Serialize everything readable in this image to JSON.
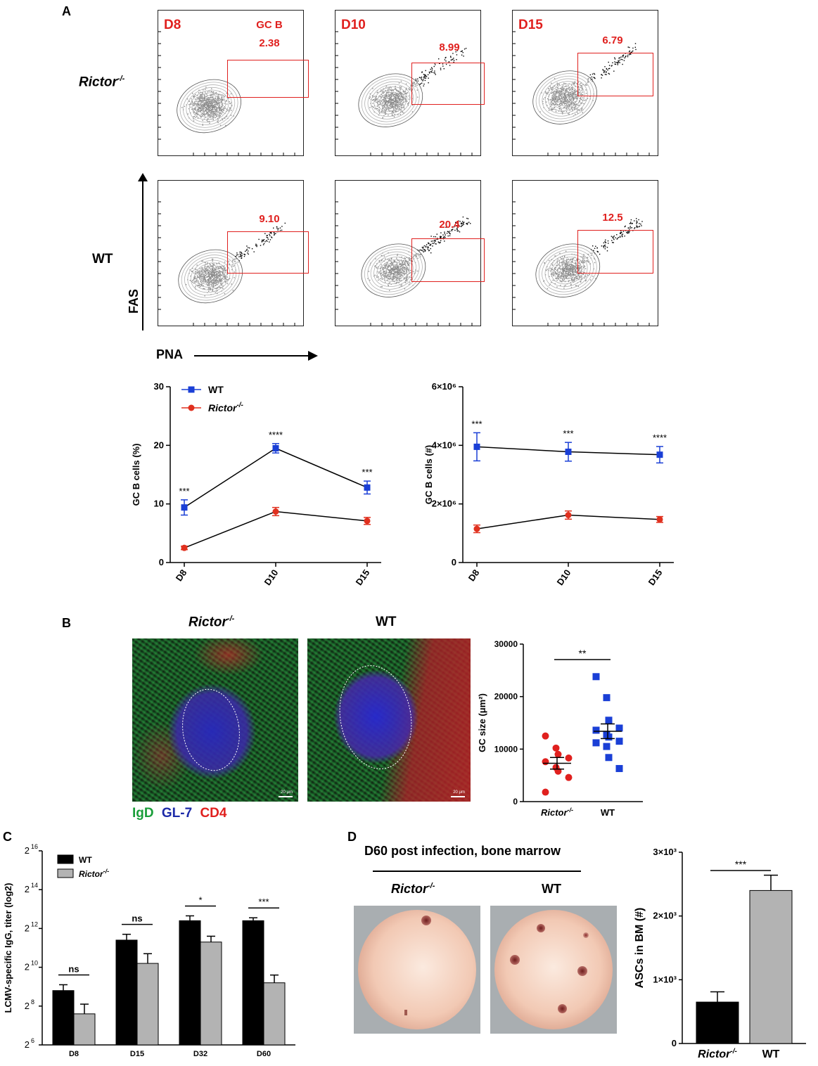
{
  "panels": {
    "A": {
      "letter": "A",
      "days": [
        "D8",
        "D10",
        "D15"
      ],
      "gate_label": "GC B",
      "rows": [
        {
          "label_main": "Rictor",
          "label_sup": "-/-",
          "gate_values": [
            "2.38",
            "8.99",
            "6.79"
          ]
        },
        {
          "label_main": "WT",
          "label_sup": "",
          "gate_values": [
            "9.10",
            "20.4",
            "12.5"
          ]
        }
      ],
      "y_axis_label": "FAS",
      "x_axis_label": "PNA"
    },
    "B": {
      "letter": "B",
      "image_titles": [
        {
          "main": "Rictor",
          "sup": "-/-"
        },
        {
          "main": "WT",
          "sup": ""
        }
      ],
      "scale_bar": "20 μm",
      "stain_legend": [
        {
          "text": "IgD",
          "color": "#1a9e3a"
        },
        {
          "text": "GL-7",
          "color": "#1c2aa8"
        },
        {
          "text": "CD4",
          "color": "#e0201e"
        }
      ]
    },
    "C": {
      "letter": "C"
    },
    "D": {
      "letter": "D",
      "title": "D60 post infection, bone marrow",
      "image_titles": [
        {
          "main": "Rictor",
          "sup": "-/-"
        },
        {
          "main": "WT",
          "sup": ""
        }
      ]
    }
  },
  "colors": {
    "wt_blue": "#1a3fd6",
    "rictor_red": "#e0301e",
    "gate_red": "#e0201e",
    "bar_black": "#000000",
    "bar_gray": "#b3b3b3"
  },
  "chart_data": [
    {
      "id": "gc-b-percent",
      "type": "line",
      "ylabel": "GC B cells (%)",
      "categories": [
        "D8",
        "D10",
        "D15"
      ],
      "ylim": [
        0,
        30
      ],
      "yticks": [
        "0",
        "10",
        "20",
        "30"
      ],
      "series": [
        {
          "name": "WT",
          "values": [
            9.4,
            19.5,
            12.8
          ],
          "errors": [
            1.3,
            0.8,
            1.1
          ],
          "color": "#1a3fd6",
          "marker": "square"
        },
        {
          "name": "Rictor-/-",
          "values": [
            2.5,
            8.7,
            7.1
          ],
          "errors": [
            0.3,
            0.7,
            0.6
          ],
          "color": "#e0301e",
          "marker": "circle"
        }
      ],
      "annotations": [
        "***",
        "****",
        "***"
      ]
    },
    {
      "id": "gc-b-number",
      "type": "line",
      "ylabel": "GC B cells (#)",
      "categories": [
        "D8",
        "D10",
        "D15"
      ],
      "ylim": [
        0,
        6000000
      ],
      "yticks": [
        "0",
        "2×10⁶",
        "4×10⁶",
        "6×10⁶"
      ],
      "series": [
        {
          "name": "WT",
          "values": [
            3950000,
            3780000,
            3680000
          ],
          "errors": [
            480000,
            320000,
            280000
          ],
          "color": "#1a3fd6",
          "marker": "square"
        },
        {
          "name": "Rictor-/-",
          "values": [
            1150000,
            1620000,
            1470000
          ],
          "errors": [
            130000,
            140000,
            100000
          ],
          "color": "#e0301e",
          "marker": "circle"
        }
      ],
      "annotations": [
        "***",
        "***",
        "****"
      ]
    },
    {
      "id": "gc-size",
      "type": "scatter",
      "ylabel": "GC size (μm²)",
      "categories": [
        "Rictor-/-",
        "WT"
      ],
      "ylim": [
        0,
        30000
      ],
      "yticks": [
        "0",
        "10000",
        "20000",
        "30000"
      ],
      "series": [
        {
          "name": "Rictor-/-",
          "values": [
            12500,
            10200,
            9000,
            8300,
            7600,
            6500,
            5800,
            4600,
            1800
          ],
          "mean": 7300,
          "sem": 1100,
          "color": "#e0201e",
          "marker": "circle"
        },
        {
          "name": "WT",
          "values": [
            23800,
            19800,
            15500,
            14000,
            13600,
            12800,
            12300,
            11500,
            11200,
            10500,
            8400,
            6300
          ],
          "mean": 13400,
          "sem": 1400,
          "color": "#1a3fd6",
          "marker": "square"
        }
      ],
      "significance": "**"
    },
    {
      "id": "lcmv-igg",
      "type": "bar",
      "ylabel": "LCMV-specific IgG, titer (log2)",
      "categories": [
        "D8",
        "D15",
        "D32",
        "D60"
      ],
      "ylim": [
        6,
        16
      ],
      "yticks": [
        {
          "base": "2",
          "exp": "6"
        },
        {
          "base": "2",
          "exp": "8"
        },
        {
          "base": "2",
          "exp": "10"
        },
        {
          "base": "2",
          "exp": "12"
        },
        {
          "base": "2",
          "exp": "14"
        },
        {
          "base": "2",
          "exp": "16"
        }
      ],
      "series": [
        {
          "name": "WT",
          "values": [
            8.8,
            11.4,
            12.4,
            12.4
          ],
          "errors": [
            0.3,
            0.3,
            0.25,
            0.15
          ],
          "color": "#000000"
        },
        {
          "name": "Rictor-/-",
          "values": [
            7.6,
            10.2,
            11.3,
            9.2
          ],
          "errors": [
            0.5,
            0.5,
            0.3,
            0.4
          ],
          "color": "#b3b3b3"
        }
      ],
      "annotations": [
        "ns",
        "ns",
        "*",
        "***"
      ]
    },
    {
      "id": "ascs-bm",
      "type": "bar",
      "ylabel": "ASCs in BM (#)",
      "categories": [
        "Rictor-/-",
        "WT"
      ],
      "ylim": [
        0,
        3000
      ],
      "yticks": [
        "0",
        "1×10³",
        "2×10³",
        "3×10³"
      ],
      "values": [
        650,
        2400
      ],
      "errors": [
        160,
        240
      ],
      "colors": [
        "#000000",
        "#b3b3b3"
      ],
      "significance": "***"
    }
  ]
}
